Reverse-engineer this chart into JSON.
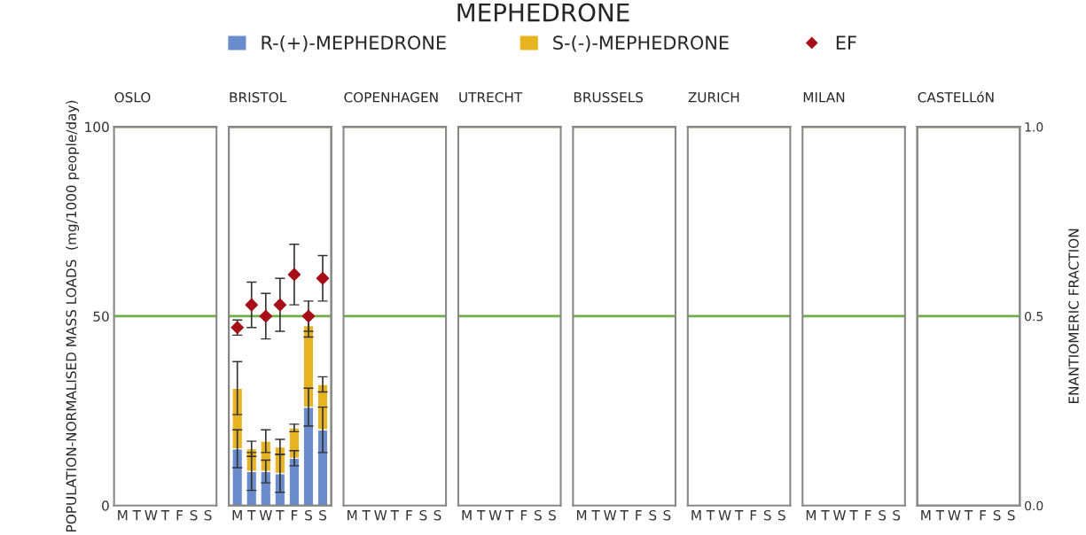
{
  "chart_data": [
    {
      "type": "bar",
      "subtitle": "OSLO",
      "categories": [
        "M",
        "T",
        "W",
        "T",
        "F",
        "S",
        "S"
      ],
      "ylim": [
        0,
        100
      ],
      "yticks": [
        0,
        50,
        100
      ],
      "ylabel": "POPULATION-NORMALISED MASS LOADS  (mg/1000 people/day)",
      "ref_lines": [
        {
          "axis": "y",
          "value": 100,
          "color": "#70ad47"
        },
        {
          "axis": "y",
          "value": 50,
          "color": "#70ad47"
        }
      ]
    },
    {
      "type": "bar",
      "subtitle": "BRISTOL",
      "stacked": true,
      "categories": [
        "M",
        "T",
        "W",
        "T",
        "F",
        "S",
        "S"
      ],
      "legend": "top",
      "tick_labels": "x",
      "ylim": [
        0,
        100
      ],
      "yticks": [
        0,
        50,
        100
      ],
      "y2lim": [
        0,
        1
      ],
      "series": [
        {
          "name": "R-(+)-MEPHEDRONE",
          "color": "#6a8ccc",
          "values": [
            15,
            9,
            9,
            8.5,
            12.5,
            26,
            20
          ],
          "errors": [
            5,
            5,
            3,
            5,
            2,
            5,
            6
          ]
        },
        {
          "name": "S-(-)-MEPHEDRONE",
          "color": "#e8b321",
          "values": [
            16,
            6,
            8,
            7,
            8,
            21.5,
            12
          ],
          "errors": [
            7,
            2,
            3,
            2,
            1,
            3,
            2
          ]
        },
        {
          "name": "EF",
          "type": "scatter",
          "axis": "y2",
          "marker": "diamond",
          "color": "#a50f15",
          "values": [
            0.47,
            0.53,
            0.5,
            0.53,
            0.61,
            0.5,
            0.6
          ],
          "errors": [
            0.02,
            0.06,
            0.06,
            0.07,
            0.08,
            0.04,
            0.06
          ]
        }
      ],
      "ref_lines": [
        {
          "axis": "y",
          "value": 100,
          "color": "#70ad47"
        },
        {
          "axis": "y",
          "value": 50,
          "color": "#70ad47"
        }
      ]
    },
    {
      "type": "bar",
      "subtitle": "COPENHAGEN",
      "categories": [
        "M",
        "T",
        "W",
        "T",
        "F",
        "S",
        "S"
      ],
      "tick_labels": "x",
      "ylim": [
        0,
        100
      ],
      "yticks": [
        0,
        50,
        100
      ],
      "ref_lines": [
        {
          "axis": "y",
          "value": 100,
          "color": "#70ad47"
        },
        {
          "axis": "y",
          "value": 50,
          "color": "#70ad47"
        }
      ]
    },
    {
      "type": "bar",
      "title": "MEPHEDRONE",
      "subtitle": "UTRECHT",
      "categories": [
        "M",
        "T",
        "W",
        "T",
        "F",
        "S",
        "S"
      ],
      "tick_labels": "x",
      "ylim": [
        0,
        100
      ],
      "yticks": [
        0,
        50,
        100
      ],
      "ref_lines": [
        {
          "axis": "y",
          "value": 100,
          "color": "#70ad47"
        },
        {
          "axis": "y",
          "value": 50,
          "color": "#70ad47"
        }
      ]
    },
    {
      "type": "bar",
      "subtitle": "BRUSSELS",
      "categories": [
        "M",
        "T",
        "W",
        "T",
        "F",
        "S",
        "S"
      ],
      "tick_labels": "x",
      "ylim": [
        0,
        100
      ],
      "yticks": [
        0,
        50,
        100
      ],
      "ref_lines": [
        {
          "axis": "y",
          "value": 100,
          "color": "#70ad47"
        },
        {
          "axis": "y",
          "value": 50,
          "color": "#70ad47"
        }
      ]
    },
    {
      "type": "bar",
      "subtitle": "ZURICH",
      "categories": [
        "M",
        "T",
        "W",
        "T",
        "F",
        "S",
        "S"
      ],
      "tick_labels": "x",
      "ylim": [
        0,
        100
      ],
      "yticks": [
        0,
        50,
        100
      ],
      "ref_lines": [
        {
          "axis": "y",
          "value": 100,
          "color": "#70ad47"
        },
        {
          "axis": "y",
          "value": 50,
          "color": "#70ad47"
        }
      ]
    },
    {
      "type": "bar",
      "subtitle": "MILAN",
      "categories": [
        "M",
        "T",
        "W",
        "T",
        "F",
        "S",
        "S"
      ],
      "tick_labels": "x",
      "ylim": [
        0,
        100
      ],
      "yticks": [
        0,
        50,
        100
      ],
      "ref_lines": [
        {
          "axis": "y",
          "value": 100,
          "color": "#70ad47"
        },
        {
          "axis": "y",
          "value": 50,
          "color": "#70ad47"
        }
      ]
    },
    {
      "type": "bar",
      "subtitle": "CASTELLóN",
      "categories": [
        "M",
        "T",
        "W",
        "T",
        "F",
        "S",
        "S"
      ],
      "y2lim": [
        0,
        1
      ],
      "y2ticks": [
        {
          "value": 0,
          "label": "0.0"
        },
        0.5,
        {
          "value": 1,
          "label": "1.0"
        }
      ],
      "y2label": "ENANTIOMERIC FRACTION",
      "ref_lines": [
        {
          "axis": "y2",
          "value": 1.0,
          "color": "#70ad47"
        },
        {
          "axis": "y2",
          "value": 0.5,
          "color": "#70ad47"
        }
      ]
    }
  ]
}
